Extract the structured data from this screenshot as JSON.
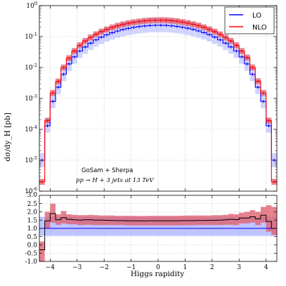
{
  "chart_data": [
    {
      "type": "step",
      "panel": "main",
      "ylabel": "dσ/dy_H [pb]",
      "yscale": "log",
      "ylim": [
        1e-06,
        1
      ],
      "xlim": [
        -4.4,
        4.4
      ],
      "grid": true,
      "legend_position": "top-right",
      "annotation": [
        "GoSam + Sherpa",
        "pp → H + 3 jets at 13 TeV"
      ],
      "bin_edges": [
        -4.4,
        -4.2,
        -4.0,
        -3.8,
        -3.6,
        -3.4,
        -3.2,
        -3.0,
        -2.8,
        -2.6,
        -2.4,
        -2.2,
        -2.0,
        -1.8,
        -1.6,
        -1.4,
        -1.2,
        -1.0,
        -0.8,
        -0.6,
        -0.4,
        -0.2,
        0.0,
        0.2,
        0.4,
        0.6,
        0.8,
        1.0,
        1.2,
        1.4,
        1.6,
        1.8,
        2.0,
        2.2,
        2.4,
        2.6,
        2.8,
        3.0,
        3.2,
        3.4,
        3.6,
        3.8,
        4.0,
        4.2,
        4.4
      ],
      "series": [
        {
          "name": "LO",
          "color": "#0000ff",
          "band_color": "#aab0ff",
          "values": [
            1e-05,
            0.00013,
            0.0008,
            0.0023,
            0.006,
            0.013,
            0.022,
            0.034,
            0.046,
            0.061,
            0.078,
            0.096,
            0.114,
            0.133,
            0.151,
            0.168,
            0.184,
            0.198,
            0.21,
            0.22,
            0.227,
            0.231,
            0.232,
            0.229,
            0.223,
            0.213,
            0.2,
            0.186,
            0.17,
            0.152,
            0.134,
            0.115,
            0.096,
            0.078,
            0.061,
            0.046,
            0.034,
            0.022,
            0.013,
            0.006,
            0.0023,
            0.0008,
            0.00013,
            1e-05
          ],
          "band_up_factor": 1.7,
          "band_down_factor": 0.6
        },
        {
          "name": "NLO",
          "color": "#ff0000",
          "band_color": "#e06070",
          "values": [
            2e-06,
            0.00019,
            0.0015,
            0.0035,
            0.01,
            0.02,
            0.034,
            0.052,
            0.072,
            0.093,
            0.118,
            0.144,
            0.17,
            0.197,
            0.223,
            0.248,
            0.27,
            0.29,
            0.306,
            0.32,
            0.331,
            0.337,
            0.339,
            0.335,
            0.326,
            0.312,
            0.294,
            0.272,
            0.25,
            0.225,
            0.198,
            0.171,
            0.144,
            0.117,
            0.093,
            0.072,
            0.052,
            0.034,
            0.021,
            0.01,
            0.0036,
            0.0015,
            0.00019,
            2e-06
          ],
          "band_up_factor": 1.25,
          "band_down_factor": 0.8
        }
      ],
      "yticks": [
        "10^{0}",
        "10^{-1}",
        "10^{-2}",
        "10^{-3}",
        "10^{-4}",
        "10^{-5}",
        "10^{-6}"
      ]
    },
    {
      "type": "step",
      "panel": "ratio",
      "xlabel": "Higgs rapidity",
      "ylim": [
        -1.0,
        3.0
      ],
      "xlim": [
        -4.4,
        4.4
      ],
      "grid": true,
      "yticks": [
        -1.0,
        -0.5,
        0.0,
        0.5,
        1.0,
        1.5,
        2.0,
        2.5
      ],
      "top_tick_label": "3.0",
      "xticks": [
        -4,
        -3,
        -2,
        -1,
        0,
        1,
        2,
        3,
        4
      ],
      "lo_ratio": {
        "value": 1.0,
        "band_low": 0.55,
        "band_high": 1.7
      },
      "nlo_ratio": {
        "values": [
          -0.3,
          1.45,
          1.9,
          1.52,
          1.65,
          1.55,
          1.52,
          1.5,
          1.52,
          1.52,
          1.5,
          1.5,
          1.49,
          1.48,
          1.47,
          1.47,
          1.46,
          1.46,
          1.46,
          1.45,
          1.46,
          1.46,
          1.46,
          1.46,
          1.46,
          1.46,
          1.47,
          1.47,
          1.47,
          1.48,
          1.48,
          1.49,
          1.49,
          1.5,
          1.52,
          1.55,
          1.53,
          1.62,
          1.63,
          1.7,
          1.58,
          1.8,
          1.42,
          1.0
        ],
        "band_low": [
          -1.0,
          1.0,
          1.35,
          1.22,
          1.3,
          1.25,
          1.25,
          1.2,
          1.22,
          1.22,
          1.2,
          1.2,
          1.2,
          1.2,
          1.2,
          1.2,
          1.18,
          1.18,
          1.18,
          1.17,
          1.18,
          1.18,
          1.18,
          1.18,
          1.18,
          1.18,
          1.18,
          1.19,
          1.19,
          1.2,
          1.2,
          1.2,
          1.2,
          1.2,
          1.22,
          1.22,
          1.2,
          1.3,
          1.3,
          1.35,
          1.2,
          1.35,
          0.8,
          0.6
        ],
        "band_high": [
          0.2,
          2.0,
          2.5,
          1.85,
          2.05,
          1.85,
          1.82,
          1.8,
          1.8,
          1.82,
          1.8,
          1.78,
          1.78,
          1.78,
          1.76,
          1.76,
          1.76,
          1.76,
          1.75,
          1.75,
          1.76,
          1.76,
          1.76,
          1.76,
          1.76,
          1.76,
          1.77,
          1.78,
          1.78,
          1.78,
          1.78,
          1.78,
          1.8,
          1.8,
          1.82,
          1.88,
          1.85,
          1.95,
          2.0,
          2.1,
          2.0,
          2.3,
          2.4,
          2.3
        ]
      }
    }
  ],
  "axis_labels": {
    "ylabel": "dσ/dy_H [pb]",
    "xlabel": "Higgs rapidity"
  },
  "legend": {
    "lo": "LO",
    "nlo": "NLO"
  },
  "annotation": {
    "line1": "GoSam + Sherpa",
    "line2": "pp → H + 3 jets at 13 TeV"
  }
}
